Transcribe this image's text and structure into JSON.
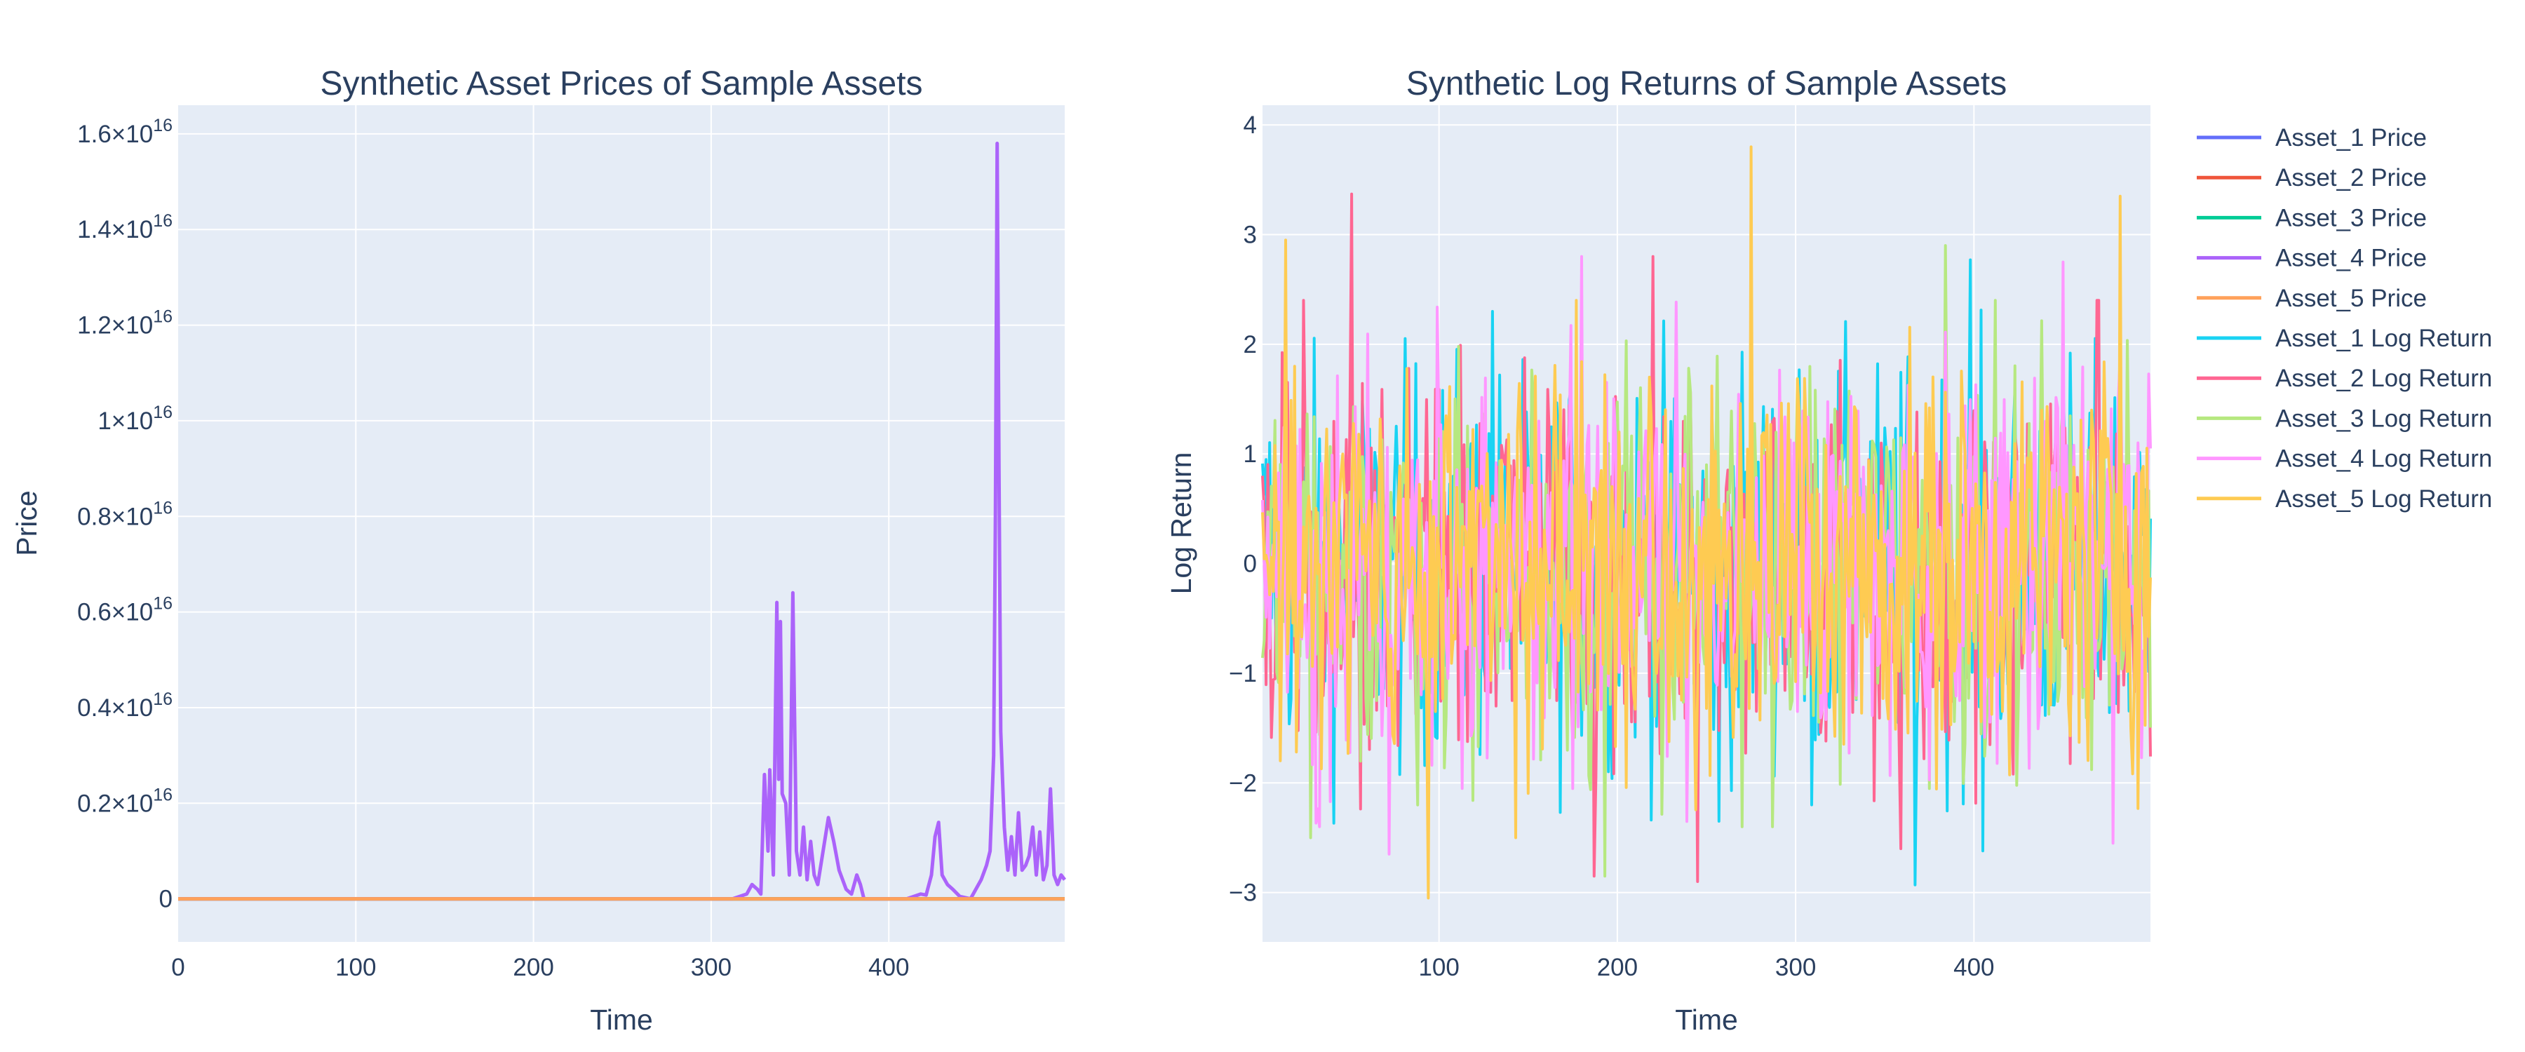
{
  "chart_data": [
    {
      "type": "line",
      "title": "Synthetic Asset Prices of Sample Assets",
      "xlabel": "Time",
      "ylabel": "Price",
      "xlim": [
        0,
        499
      ],
      "ylim": [
        -900000000000000.0,
        1.66e+16
      ],
      "grid": true,
      "x_ticks": [
        {
          "value": 0,
          "label": "0"
        },
        {
          "value": 100,
          "label": "100"
        },
        {
          "value": 200,
          "label": "200"
        },
        {
          "value": 300,
          "label": "300"
        },
        {
          "value": 400,
          "label": "400"
        }
      ],
      "y_ticks": [
        {
          "value": 0,
          "mantissa": "0",
          "exponent": ""
        },
        {
          "value": 2000000000000000.0,
          "mantissa": "0.2×10",
          "exponent": "16"
        },
        {
          "value": 4000000000000000.0,
          "mantissa": "0.4×10",
          "exponent": "16"
        },
        {
          "value": 6000000000000000.0,
          "mantissa": "0.6×10",
          "exponent": "16"
        },
        {
          "value": 8000000000000000.0,
          "mantissa": "0.8×10",
          "exponent": "16"
        },
        {
          "value": 1e+16,
          "mantissa": "1×10",
          "exponent": "16"
        },
        {
          "value": 1.2e+16,
          "mantissa": "1.2×10",
          "exponent": "16"
        },
        {
          "value": 1.4e+16,
          "mantissa": "1.4×10",
          "exponent": "16"
        },
        {
          "value": 1.6e+16,
          "mantissa": "1.6×10",
          "exponent": "16"
        }
      ],
      "series": [
        {
          "name": "Asset_1 Price",
          "color": "#636efa",
          "points": [
            [
              0,
              0
            ],
            [
              499,
              0
            ]
          ]
        },
        {
          "name": "Asset_2 Price",
          "color": "#ef553b",
          "points": [
            [
              0,
              0
            ],
            [
              499,
              0
            ]
          ]
        },
        {
          "name": "Asset_3 Price",
          "color": "#00cc96",
          "points": [
            [
              0,
              0
            ],
            [
              499,
              0
            ]
          ]
        },
        {
          "name": "Asset_4 Price",
          "color": "#ab63fa",
          "points": [
            [
              0,
              0
            ],
            [
              312,
              0
            ],
            [
              316,
              50000000000000.0
            ],
            [
              320,
              100000000000000.0
            ],
            [
              323,
              300000000000000.0
            ],
            [
              326,
              200000000000000.0
            ],
            [
              328,
              100000000000000.0
            ],
            [
              330,
              2600000000000000.0
            ],
            [
              332,
              1000000000000000.0
            ],
            [
              333,
              2700000000000000.0
            ],
            [
              335,
              500000000000000.0
            ],
            [
              337,
              6200000000000000.0
            ],
            [
              338,
              2500000000000000.0
            ],
            [
              339,
              5800000000000000.0
            ],
            [
              340,
              2200000000000000.0
            ],
            [
              342,
              2000000000000000.0
            ],
            [
              344,
              500000000000000.0
            ],
            [
              346,
              6400000000000000.0
            ],
            [
              348,
              1000000000000000.0
            ],
            [
              350,
              500000000000000.0
            ],
            [
              352,
              1500000000000000.0
            ],
            [
              354,
              400000000000000.0
            ],
            [
              356,
              1200000000000000.0
            ],
            [
              358,
              500000000000000.0
            ],
            [
              360,
              300000000000000.0
            ],
            [
              363,
              1000000000000000.0
            ],
            [
              366,
              1700000000000000.0
            ],
            [
              369,
              1200000000000000.0
            ],
            [
              372,
              600000000000000.0
            ],
            [
              376,
              200000000000000.0
            ],
            [
              379,
              100000000000000.0
            ],
            [
              382,
              500000000000000.0
            ],
            [
              384,
              300000000000000.0
            ],
            [
              386,
              0.0
            ],
            [
              410,
              0.0
            ],
            [
              414,
              50000000000000.0
            ],
            [
              418,
              100000000000000.0
            ],
            [
              421,
              80000000000000.0
            ],
            [
              424,
              500000000000000.0
            ],
            [
              426,
              1300000000000000.0
            ],
            [
              428,
              1600000000000000.0
            ],
            [
              430,
              500000000000000.0
            ],
            [
              433,
              300000000000000.0
            ],
            [
              436,
              200000000000000.0
            ],
            [
              440,
              50000000000000.0
            ],
            [
              446,
              0.0
            ],
            [
              452,
              400000000000000.0
            ],
            [
              455,
              700000000000000.0
            ],
            [
              457,
              1000000000000000.0
            ],
            [
              459,
              3000000000000000.0
            ],
            [
              460,
              8000000000000000.0
            ],
            [
              461,
              1.58e+16
            ],
            [
              462,
              9000000000000000.0
            ],
            [
              463,
              3500000000000000.0
            ],
            [
              465,
              1500000000000000.0
            ],
            [
              467,
              600000000000000.0
            ],
            [
              469,
              1300000000000000.0
            ],
            [
              471,
              500000000000000.0
            ],
            [
              473,
              1800000000000000.0
            ],
            [
              475,
              600000000000000.0
            ],
            [
              477,
              700000000000000.0
            ],
            [
              479,
              900000000000000.0
            ],
            [
              481,
              1500000000000000.0
            ],
            [
              483,
              500000000000000.0
            ],
            [
              485,
              1400000000000000.0
            ],
            [
              487,
              400000000000000.0
            ],
            [
              489,
              700000000000000.0
            ],
            [
              491,
              2300000000000000.0
            ],
            [
              493,
              500000000000000.0
            ],
            [
              495,
              300000000000000.0
            ],
            [
              497,
              500000000000000.0
            ],
            [
              499,
              400000000000000.0
            ]
          ]
        },
        {
          "name": "Asset_5 Price",
          "color": "#ffa15a",
          "points": [
            [
              0,
              0
            ],
            [
              499,
              0
            ]
          ]
        }
      ]
    },
    {
      "type": "line",
      "title": "Synthetic Log Returns of Sample Assets",
      "xlabel": "Time",
      "ylabel": "Log Return",
      "xlim": [
        1,
        499
      ],
      "ylim": [
        -3.45,
        4.18
      ],
      "grid": true,
      "x_ticks": [
        {
          "value": 100,
          "label": "100"
        },
        {
          "value": 200,
          "label": "200"
        },
        {
          "value": 300,
          "label": "300"
        },
        {
          "value": 400,
          "label": "400"
        }
      ],
      "y_ticks": [
        {
          "value": -3,
          "label": "−3"
        },
        {
          "value": -2,
          "label": "−2"
        },
        {
          "value": -1,
          "label": "−1"
        },
        {
          "value": 0,
          "label": "0"
        },
        {
          "value": 1,
          "label": "1"
        },
        {
          "value": 2,
          "label": "2"
        },
        {
          "value": 3,
          "label": "3"
        },
        {
          "value": 4,
          "label": "4"
        }
      ],
      "series": [
        {
          "name": "Asset_1 Log Return",
          "color": "#19d3f3",
          "n": 499,
          "peaks": [
            [
              398,
              2.77
            ],
            [
              367,
              -2.93
            ],
            [
              405,
              -2.62
            ],
            [
              130,
              2.3
            ],
            [
              309,
              -2.2
            ],
            [
              257,
              -2.35
            ]
          ]
        },
        {
          "name": "Asset_2 Log Return",
          "color": "#ff6692",
          "n": 499,
          "peaks": [
            [
              51,
              3.37
            ],
            [
              220,
              2.8
            ],
            [
              245,
              -2.9
            ],
            [
              187,
              -2.85
            ],
            [
              359,
              -2.6
            ]
          ]
        },
        {
          "name": "Asset_3 Log Return",
          "color": "#b6e880",
          "n": 499,
          "peaks": [
            [
              28,
              -2.5
            ],
            [
              193,
              -2.85
            ],
            [
              384,
              2.9
            ],
            [
              270,
              -2.4
            ]
          ]
        },
        {
          "name": "Asset_4 Log Return",
          "color": "#ff97ff",
          "n": 499,
          "peaks": [
            [
              180,
              2.8
            ],
            [
              450,
              2.75
            ],
            [
              72,
              -2.65
            ],
            [
              478,
              -2.55
            ]
          ]
        },
        {
          "name": "Asset_5 Log Return",
          "color": "#fecb52",
          "n": 499,
          "peaks": [
            [
              275,
              3.8
            ],
            [
              482,
              3.35
            ],
            [
              94,
              -3.05
            ],
            [
              14,
              2.95
            ],
            [
              143,
              -2.5
            ]
          ]
        }
      ]
    }
  ],
  "legend": {
    "placement": "right",
    "items": [
      {
        "label": "Asset_1 Price",
        "color": "#636efa"
      },
      {
        "label": "Asset_2 Price",
        "color": "#ef553b"
      },
      {
        "label": "Asset_3 Price",
        "color": "#00cc96"
      },
      {
        "label": "Asset_4 Price",
        "color": "#ab63fa"
      },
      {
        "label": "Asset_5 Price",
        "color": "#ffa15a"
      },
      {
        "label": "Asset_1 Log Return",
        "color": "#19d3f3"
      },
      {
        "label": "Asset_2 Log Return",
        "color": "#ff6692"
      },
      {
        "label": "Asset_3 Log Return",
        "color": "#b6e880"
      },
      {
        "label": "Asset_4 Log Return",
        "color": "#ff97ff"
      },
      {
        "label": "Asset_5 Log Return",
        "color": "#fecb52"
      }
    ]
  },
  "colors": {
    "plot_background": "#e5ecf6",
    "grid": "#ffffff",
    "text": "#2a3f5f"
  }
}
